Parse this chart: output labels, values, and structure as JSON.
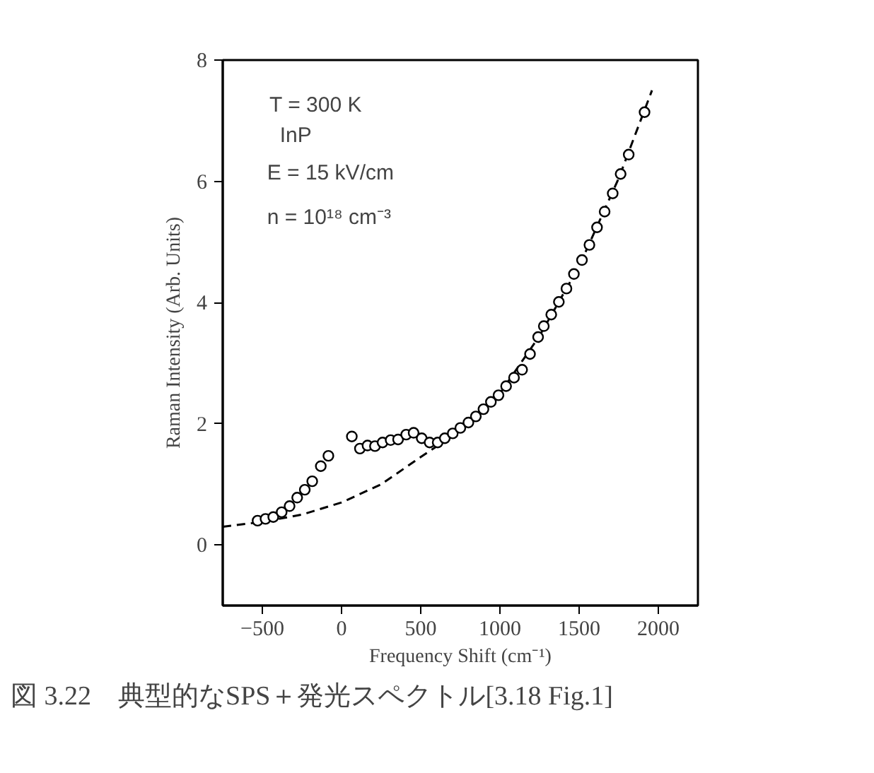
{
  "chart_data": {
    "type": "scatter",
    "xlabel": "Frequency Shift (cm⁻¹)",
    "ylabel": "Raman Intensity (Arb. Units)",
    "xlim": [
      -750,
      2250
    ],
    "xticks": [
      -500,
      0,
      500,
      1000,
      1500,
      2000
    ],
    "ylim": [
      -1,
      8
    ],
    "yticks": [
      0,
      2,
      4,
      6,
      8
    ],
    "grid": false,
    "series": [
      {
        "color": "#000000",
        "marker": "circle",
        "x": [
          -530,
          -480,
          -431,
          -378,
          -328,
          -280,
          -232,
          -185,
          -131,
          -83,
          65,
          116,
          164,
          211,
          259,
          310,
          357,
          408,
          455,
          506,
          556,
          607,
          652,
          702,
          750,
          801,
          848,
          896,
          943,
          991,
          1039,
          1089,
          1140,
          1190,
          1241,
          1277,
          1324,
          1372,
          1420,
          1467,
          1518,
          1565,
          1613,
          1661,
          1712,
          1762,
          1813,
          1913
        ],
        "values": [
          0.4,
          0.43,
          0.46,
          0.54,
          0.64,
          0.78,
          0.91,
          1.05,
          1.3,
          1.47,
          1.79,
          1.59,
          1.64,
          1.63,
          1.69,
          1.73,
          1.74,
          1.82,
          1.85,
          1.76,
          1.69,
          1.69,
          1.76,
          1.84,
          1.93,
          2.02,
          2.12,
          2.24,
          2.36,
          2.47,
          2.62,
          2.76,
          2.89,
          3.15,
          3.43,
          3.61,
          3.8,
          4.01,
          4.23,
          4.47,
          4.7,
          4.95,
          5.24,
          5.5,
          5.8,
          6.12,
          6.44,
          7.14
        ]
      },
      {
        "type": "line",
        "color": "#000000",
        "line_style": "dashed",
        "marker": "none",
        "x": [
          -750,
          -500,
          -250,
          0,
          250,
          500,
          700,
          1000,
          1250,
          1500,
          1750,
          1960
        ],
        "values": [
          0.3,
          0.38,
          0.5,
          0.7,
          1.0,
          1.45,
          1.8,
          2.5,
          3.45,
          4.6,
          6.05,
          7.5
        ]
      }
    ],
    "annotations": [
      "T = 300 K",
      "InP",
      "E = 15 kV/cm",
      "n = 10¹⁸ cm⁻³",
      "図 3.22　典型的なSPS＋発光スペクトル[3.18 Fig.1]"
    ]
  }
}
